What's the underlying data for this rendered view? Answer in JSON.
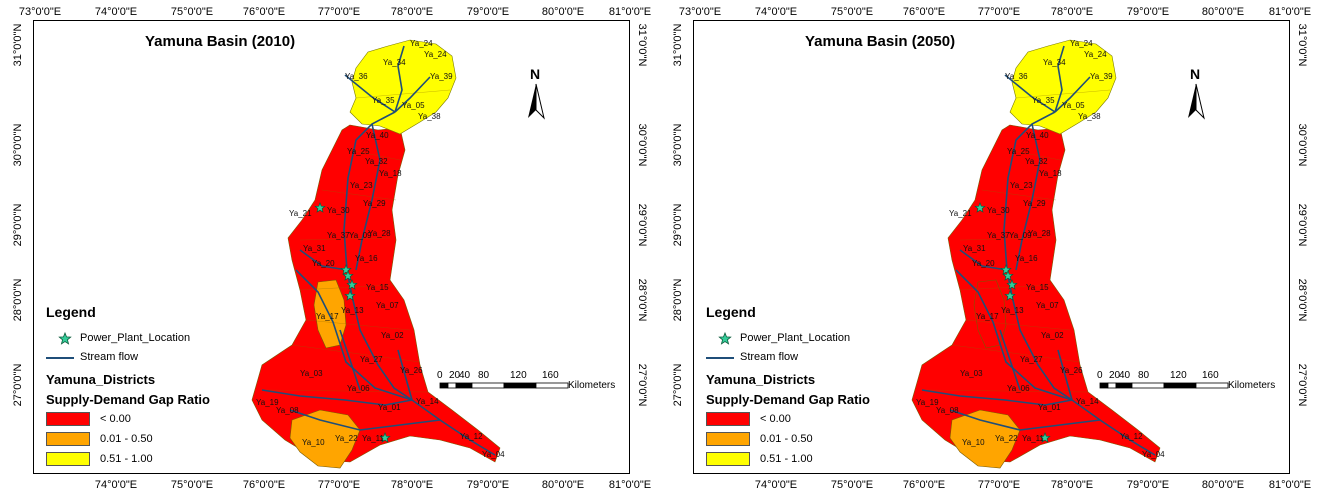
{
  "maps": [
    {
      "title": "Yamuna Basin (2010)",
      "classes": {
        "upper": "yellow",
        "doab": "red",
        "southwest": "orange",
        "west_pocket": "orange"
      }
    },
    {
      "title": "Yamuna Basin (2050)",
      "classes": {
        "upper": "yellow",
        "doab": "red",
        "southwest": "orange",
        "west_pocket": "red"
      }
    }
  ],
  "axes": {
    "lon_ticks": [
      "73°0'0\"E",
      "74°0'0\"E",
      "75°0'0\"E",
      "76°0'0\"E",
      "77°0'0\"E",
      "78°0'0\"E",
      "79°0'0\"E",
      "80°0'0\"E",
      "81°0'0\"E"
    ],
    "lon_ticks_bottom": [
      "74°0'0\"E",
      "75°0'0\"E",
      "76°0'0\"E",
      "77°0'0\"E",
      "78°0'0\"E",
      "79°0'0\"E",
      "80°0'0\"E",
      "81°0'0\"E"
    ],
    "lat_ticks_left": [
      "31°0'0\"N",
      "30°0'0\"N",
      "29°0'0\"N",
      "28°0'0\"N",
      "27°0'0\"N"
    ],
    "lat_ticks_right": [
      "31°0'0\"N",
      "30°0'0\"N",
      "29°0'0\"N",
      "28°0'0\"N",
      "27°0'0\"N"
    ]
  },
  "legend": {
    "heading": "Legend",
    "power_plant": "Power_Plant_Location",
    "stream": "Stream flow",
    "districts": "Yamuna_Districts",
    "gap_title": "Supply-Demand Gap Ratio",
    "classes": [
      {
        "label": "< 0.00",
        "color": "#ff0000"
      },
      {
        "label": "0.01 - 0.50",
        "color": "#ffa500"
      },
      {
        "label": "0.51 - 1.00",
        "color": "#ffff00"
      }
    ]
  },
  "scale_bar": {
    "ticks": [
      "0",
      "20",
      "40",
      "80",
      "120",
      "160"
    ],
    "unit": "Kilometers"
  },
  "north_label": "N",
  "colors": {
    "red": "#ff0000",
    "orange": "#ffa500",
    "yellow": "#ffff00",
    "stream": "#1f4e79",
    "plant": "#33cc99"
  },
  "districts": [
    "Ya_24",
    "Ya_24",
    "Ya_34",
    "Ya_36",
    "Ya_39",
    "Ya_35",
    "Ya_05",
    "Ya_38",
    "Ya_40",
    "Ya_25",
    "Ya_32",
    "Ya_18",
    "Ya_23",
    "Ya_29",
    "Ya_21",
    "Ya_30",
    "Ya_37",
    "Ya_09",
    "Ya_28",
    "Ya_31",
    "Ya_20",
    "Ya_16",
    "Ya_15",
    "Ya_07",
    "Ya_17",
    "Ya_13",
    "Ya_02",
    "Ya_27",
    "Ya_26",
    "Ya_03",
    "Ya_06",
    "Ya_19",
    "Ya_08",
    "Ya_14",
    "Ya_01",
    "Ya_22",
    "Ya_11",
    "Ya_10",
    "Ya_12",
    "Ya_04"
  ]
}
